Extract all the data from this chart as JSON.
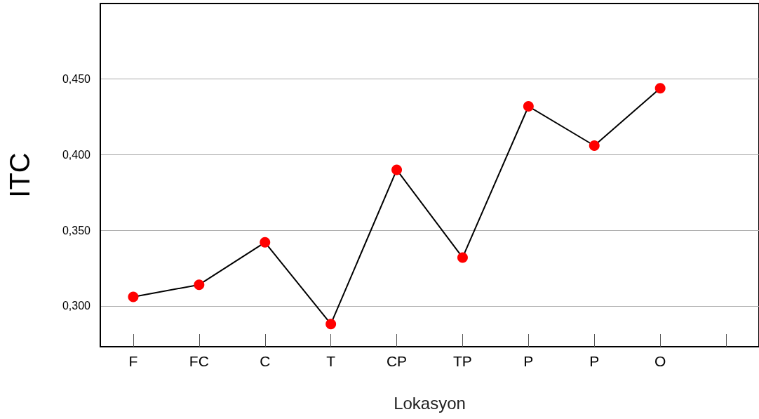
{
  "chart_data": {
    "type": "line",
    "xlabel": "Lokasyon",
    "ylabel": "ITC",
    "categories": [
      "F",
      "FC",
      "C",
      "T",
      "CP",
      "TP",
      "P",
      "P",
      "O",
      null
    ],
    "series": [
      {
        "color": "#ff0000",
        "values": [
          0.306,
          0.314,
          0.342,
          0.288,
          0.39,
          0.332,
          0.432,
          0.406,
          0.444,
          null
        ]
      }
    ],
    "ylim": [
      0.273,
      0.5
    ],
    "yticks": [
      {
        "value": 0.3,
        "label": "0,300"
      },
      {
        "value": 0.35,
        "label": "0,350"
      },
      {
        "value": 0.4,
        "label": "0,400"
      },
      {
        "value": 0.45,
        "label": "0,450"
      }
    ],
    "grid": "y",
    "marker": "circle",
    "line_style": "solid"
  }
}
